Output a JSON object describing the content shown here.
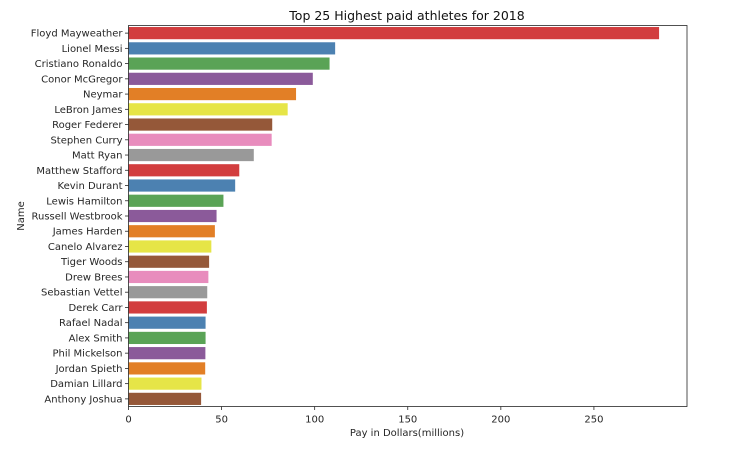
{
  "chart_data": {
    "type": "bar",
    "orientation": "horizontal",
    "title": "Top 25 Highest paid athletes for 2018",
    "xlabel": "Pay in Dollars(millions)",
    "ylabel": "Name",
    "xlim": [
      0,
      300
    ],
    "xticks": [
      0,
      50,
      100,
      150,
      200,
      250
    ],
    "grid": false,
    "categories": [
      "Floyd Mayweather",
      "Lionel Messi",
      "Cristiano Ronaldo",
      "Conor McGregor",
      "Neymar",
      "LeBron James",
      "Roger Federer",
      "Stephen Curry",
      "Matt Ryan",
      "Matthew Stafford",
      "Kevin Durant",
      "Lewis Hamilton",
      "Russell Westbrook",
      "James Harden",
      "Canelo Alvarez",
      "Tiger Woods",
      "Drew Brees",
      "Sebastian Vettel",
      "Derek Carr",
      "Rafael Nadal",
      "Alex Smith",
      "Phil Mickelson",
      "Jordan Spieth",
      "Damian Lillard",
      "Anthony Joshua"
    ],
    "values": [
      285,
      111,
      108,
      99,
      90,
      85.5,
      77.2,
      76.9,
      67.3,
      59.5,
      57.3,
      51,
      47.3,
      46.4,
      44.5,
      43.3,
      42.9,
      42.3,
      42.1,
      41.4,
      41.4,
      41.3,
      41.2,
      39.2,
      39
    ],
    "palette": [
      "#d23d3e",
      "#4c81b1",
      "#5aa356",
      "#8b5a9a",
      "#e27f26",
      "#e6e547",
      "#955839",
      "#e88cbd",
      "#999999"
    ]
  }
}
